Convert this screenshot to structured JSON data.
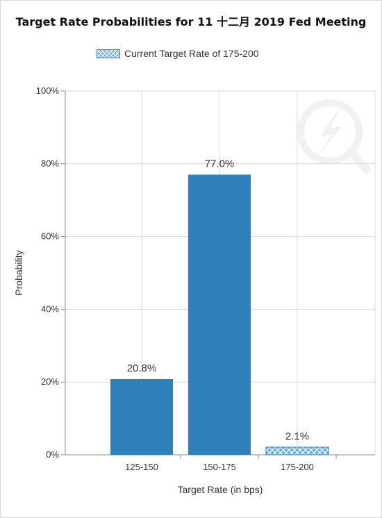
{
  "chart_data": {
    "type": "bar",
    "title": "Target Rate Probabilities for 11 十二月 2019 Fed Meeting",
    "legend": [
      {
        "label": "Current Target Rate of 175-200",
        "pattern": "crosshatch"
      }
    ],
    "legend_placement": "top-center",
    "xlabel": "Target Rate (in bps)",
    "ylabel": "Probability",
    "categories": [
      "125-150",
      "150-175",
      "175-200"
    ],
    "values": [
      20.8,
      77.0,
      2.1
    ],
    "value_labels": [
      "20.8%",
      "77.0%",
      "2.1%"
    ],
    "current_target_category": "175-200",
    "ylim": [
      0,
      100
    ],
    "yticks": [
      0,
      20,
      40,
      60,
      80,
      100
    ],
    "ytick_labels": [
      "0%",
      "20%",
      "40%",
      "60%",
      "80%",
      "100%"
    ],
    "grid": true,
    "colors": {
      "bar": "#2e7fba",
      "hatch_fill": "#6fb0dd",
      "grid": "#d9d9d9",
      "axis": "#888888"
    }
  }
}
